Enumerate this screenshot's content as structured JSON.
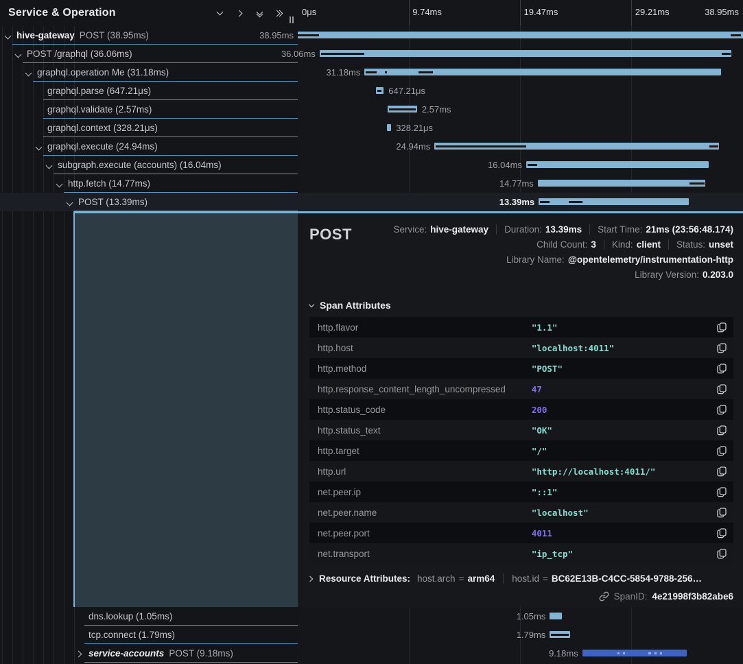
{
  "left_header": {
    "title": "Service & Operation"
  },
  "ruler": {
    "ticks": [
      "0μs",
      "9.74ms",
      "19.47ms",
      "29.21ms",
      "38.95ms"
    ]
  },
  "colors": {
    "span_bar": "#82b5d3",
    "service_accounts_bar": "#3d64c4",
    "row_divider": "#4e9cc6",
    "string_value": "#7ce0d2",
    "number_value": "#7d6ef2",
    "detail_overlay": "#2d3b44"
  },
  "rows": [
    {
      "group": "top",
      "depth": 0,
      "chevron": "down",
      "service": "hive-gateway",
      "service_italic": false,
      "text": "POST (38.95ms)",
      "selected": false,
      "bar": {
        "start": 0,
        "width": 100,
        "label": "38.95ms",
        "side": "left",
        "color": "light",
        "markers": [
          {
            "s": 0,
            "w": 4.8
          },
          {
            "s": 97.2,
            "w": 2.4
          }
        ]
      }
    },
    {
      "group": "top",
      "depth": 1,
      "chevron": "down",
      "text": "POST /graphql (36.06ms)",
      "bar": {
        "start": 4.9,
        "width": 92.5,
        "label": "36.06ms",
        "side": "left",
        "color": "light",
        "markers": [
          {
            "s": 5.2,
            "w": 9.8
          },
          {
            "s": 95.2,
            "w": 2.0
          }
        ]
      }
    },
    {
      "group": "top",
      "depth": 2,
      "chevron": "down",
      "text": "graphql.operation Me (31.18ms)",
      "bar": {
        "start": 15.0,
        "width": 80.1,
        "label": "31.18ms",
        "side": "left",
        "color": "light",
        "markers": [
          {
            "s": 15.3,
            "w": 2.4
          },
          {
            "s": 19.6,
            "w": 0.5
          },
          {
            "s": 27.1,
            "w": 3.3
          }
        ]
      }
    },
    {
      "group": "top",
      "depth": 3,
      "chevron": null,
      "text": "graphql.parse (647.21μs)",
      "bar": {
        "start": 17.6,
        "width": 1.7,
        "label": "647.21μs",
        "side": "right",
        "color": "light",
        "markers": [
          {
            "s": 17.8,
            "w": 1.0
          }
        ]
      }
    },
    {
      "group": "top",
      "depth": 3,
      "chevron": null,
      "text": "graphql.validate (2.57ms)",
      "bar": {
        "start": 20.2,
        "width": 6.6,
        "label": "2.57ms",
        "side": "right",
        "color": "light",
        "markers": [
          {
            "s": 20.5,
            "w": 6.0
          }
        ]
      }
    },
    {
      "group": "top",
      "depth": 3,
      "chevron": null,
      "text": "graphql.context (328.21μs)",
      "bar": {
        "start": 20.1,
        "width": 0.9,
        "label": "328.21μs",
        "side": "right",
        "color": "light",
        "markers": []
      }
    },
    {
      "group": "top",
      "depth": 3,
      "chevron": "down",
      "text": "graphql.execute (24.94ms)",
      "bar": {
        "start": 30.7,
        "width": 63.9,
        "label": "24.94ms",
        "side": "left",
        "color": "light",
        "markers": [
          {
            "s": 31.0,
            "w": 20.3
          },
          {
            "s": 92.4,
            "w": 2.0
          }
        ]
      }
    },
    {
      "group": "top",
      "depth": 4,
      "chevron": "down",
      "text": "subgraph.execute (accounts) (16.04ms)",
      "bar": {
        "start": 51.3,
        "width": 41.0,
        "label": "16.04ms",
        "side": "left",
        "color": "light",
        "markers": [
          {
            "s": 51.6,
            "w": 2.1
          }
        ]
      }
    },
    {
      "group": "top",
      "depth": 5,
      "chevron": "down",
      "text": "http.fetch (14.77ms)",
      "bar": {
        "start": 53.9,
        "width": 37.6,
        "label": "14.77ms",
        "side": "left",
        "color": "light",
        "markers": [
          {
            "s": 88.0,
            "w": 3.3
          }
        ]
      }
    },
    {
      "group": "top",
      "depth": 6,
      "chevron": "down",
      "text": "POST (13.39ms)",
      "selected": true,
      "bar": {
        "start": 54.1,
        "width": 33.8,
        "label": "13.39ms",
        "side": "left",
        "color": "light",
        "markers": [
          {
            "s": 54.4,
            "w": 2.2
          },
          {
            "s": 60.9,
            "w": 3.1
          }
        ]
      }
    },
    {
      "group": "bottom",
      "depth": 7,
      "chevron": null,
      "text": "dns.lookup (1.05ms)",
      "bar": {
        "start": 56.6,
        "width": 2.7,
        "label": "1.05ms",
        "side": "left",
        "color": "light",
        "markers": []
      }
    },
    {
      "group": "bottom",
      "depth": 7,
      "chevron": null,
      "text": "tcp.connect (1.79ms)",
      "bar": {
        "start": 56.6,
        "width": 4.6,
        "label": "1.79ms",
        "side": "left",
        "color": "light",
        "markers": [
          {
            "s": 56.9,
            "w": 3.9
          }
        ]
      }
    },
    {
      "group": "bottom",
      "depth": 7,
      "chevron": "right",
      "service": "service-accounts",
      "service_italic": true,
      "text": "POST (9.18ms)",
      "bar": {
        "start": 63.9,
        "width": 23.5,
        "label": "9.18ms",
        "side": "left",
        "color": "blue",
        "marker_tone": "light",
        "markers": [
          {
            "s": 71.8,
            "w": 0.5
          },
          {
            "s": 73.0,
            "w": 0.5
          },
          {
            "s": 78.8,
            "w": 0.5
          },
          {
            "s": 80.1,
            "w": 0.5
          },
          {
            "s": 81.3,
            "w": 0.5
          }
        ]
      }
    }
  ],
  "detail": {
    "title": "POST",
    "meta_lines": [
      [
        {
          "label": "Service:",
          "value": "hive-gateway"
        },
        {
          "label": "Duration:",
          "value": "13.39ms"
        },
        {
          "label": "Start Time:",
          "value": "21ms (23:56:48.174)"
        }
      ],
      [
        {
          "label": "Child Count:",
          "value": "3"
        },
        {
          "label": "Kind:",
          "value": "client"
        },
        {
          "label": "Status:",
          "value": "unset"
        }
      ],
      [
        {
          "label": "Library Name:",
          "value": "@opentelemetry/instrumentation-http"
        }
      ],
      [
        {
          "label": "Library Version:",
          "value": "0.203.0"
        }
      ]
    ],
    "span_attributes": {
      "header": "Span Attributes",
      "rows": [
        {
          "key": "http.flavor",
          "value": "\"1.1\"",
          "type": "string"
        },
        {
          "key": "http.host",
          "value": "\"localhost:4011\"",
          "type": "string"
        },
        {
          "key": "http.method",
          "value": "\"POST\"",
          "type": "string"
        },
        {
          "key": "http.response_content_length_uncompressed",
          "value": "47",
          "type": "number"
        },
        {
          "key": "http.status_code",
          "value": "200",
          "type": "number"
        },
        {
          "key": "http.status_text",
          "value": "\"OK\"",
          "type": "string"
        },
        {
          "key": "http.target",
          "value": "\"/\"",
          "type": "string"
        },
        {
          "key": "http.url",
          "value": "\"http://localhost:4011/\"",
          "type": "string"
        },
        {
          "key": "net.peer.ip",
          "value": "\"::1\"",
          "type": "string"
        },
        {
          "key": "net.peer.name",
          "value": "\"localhost\"",
          "type": "string"
        },
        {
          "key": "net.peer.port",
          "value": "4011",
          "type": "number"
        },
        {
          "key": "net.transport",
          "value": "\"ip_tcp\"",
          "type": "string"
        }
      ]
    },
    "resource_attributes": {
      "header": "Resource Attributes:",
      "items": [
        {
          "key": "host.arch",
          "value": "arm64"
        },
        {
          "key": "host.id",
          "value": "BC62E13B-C4CC-5854-9788-256…"
        }
      ]
    },
    "span_id": {
      "label": "SpanID:",
      "value": "4e21998f3b82abe6"
    }
  }
}
